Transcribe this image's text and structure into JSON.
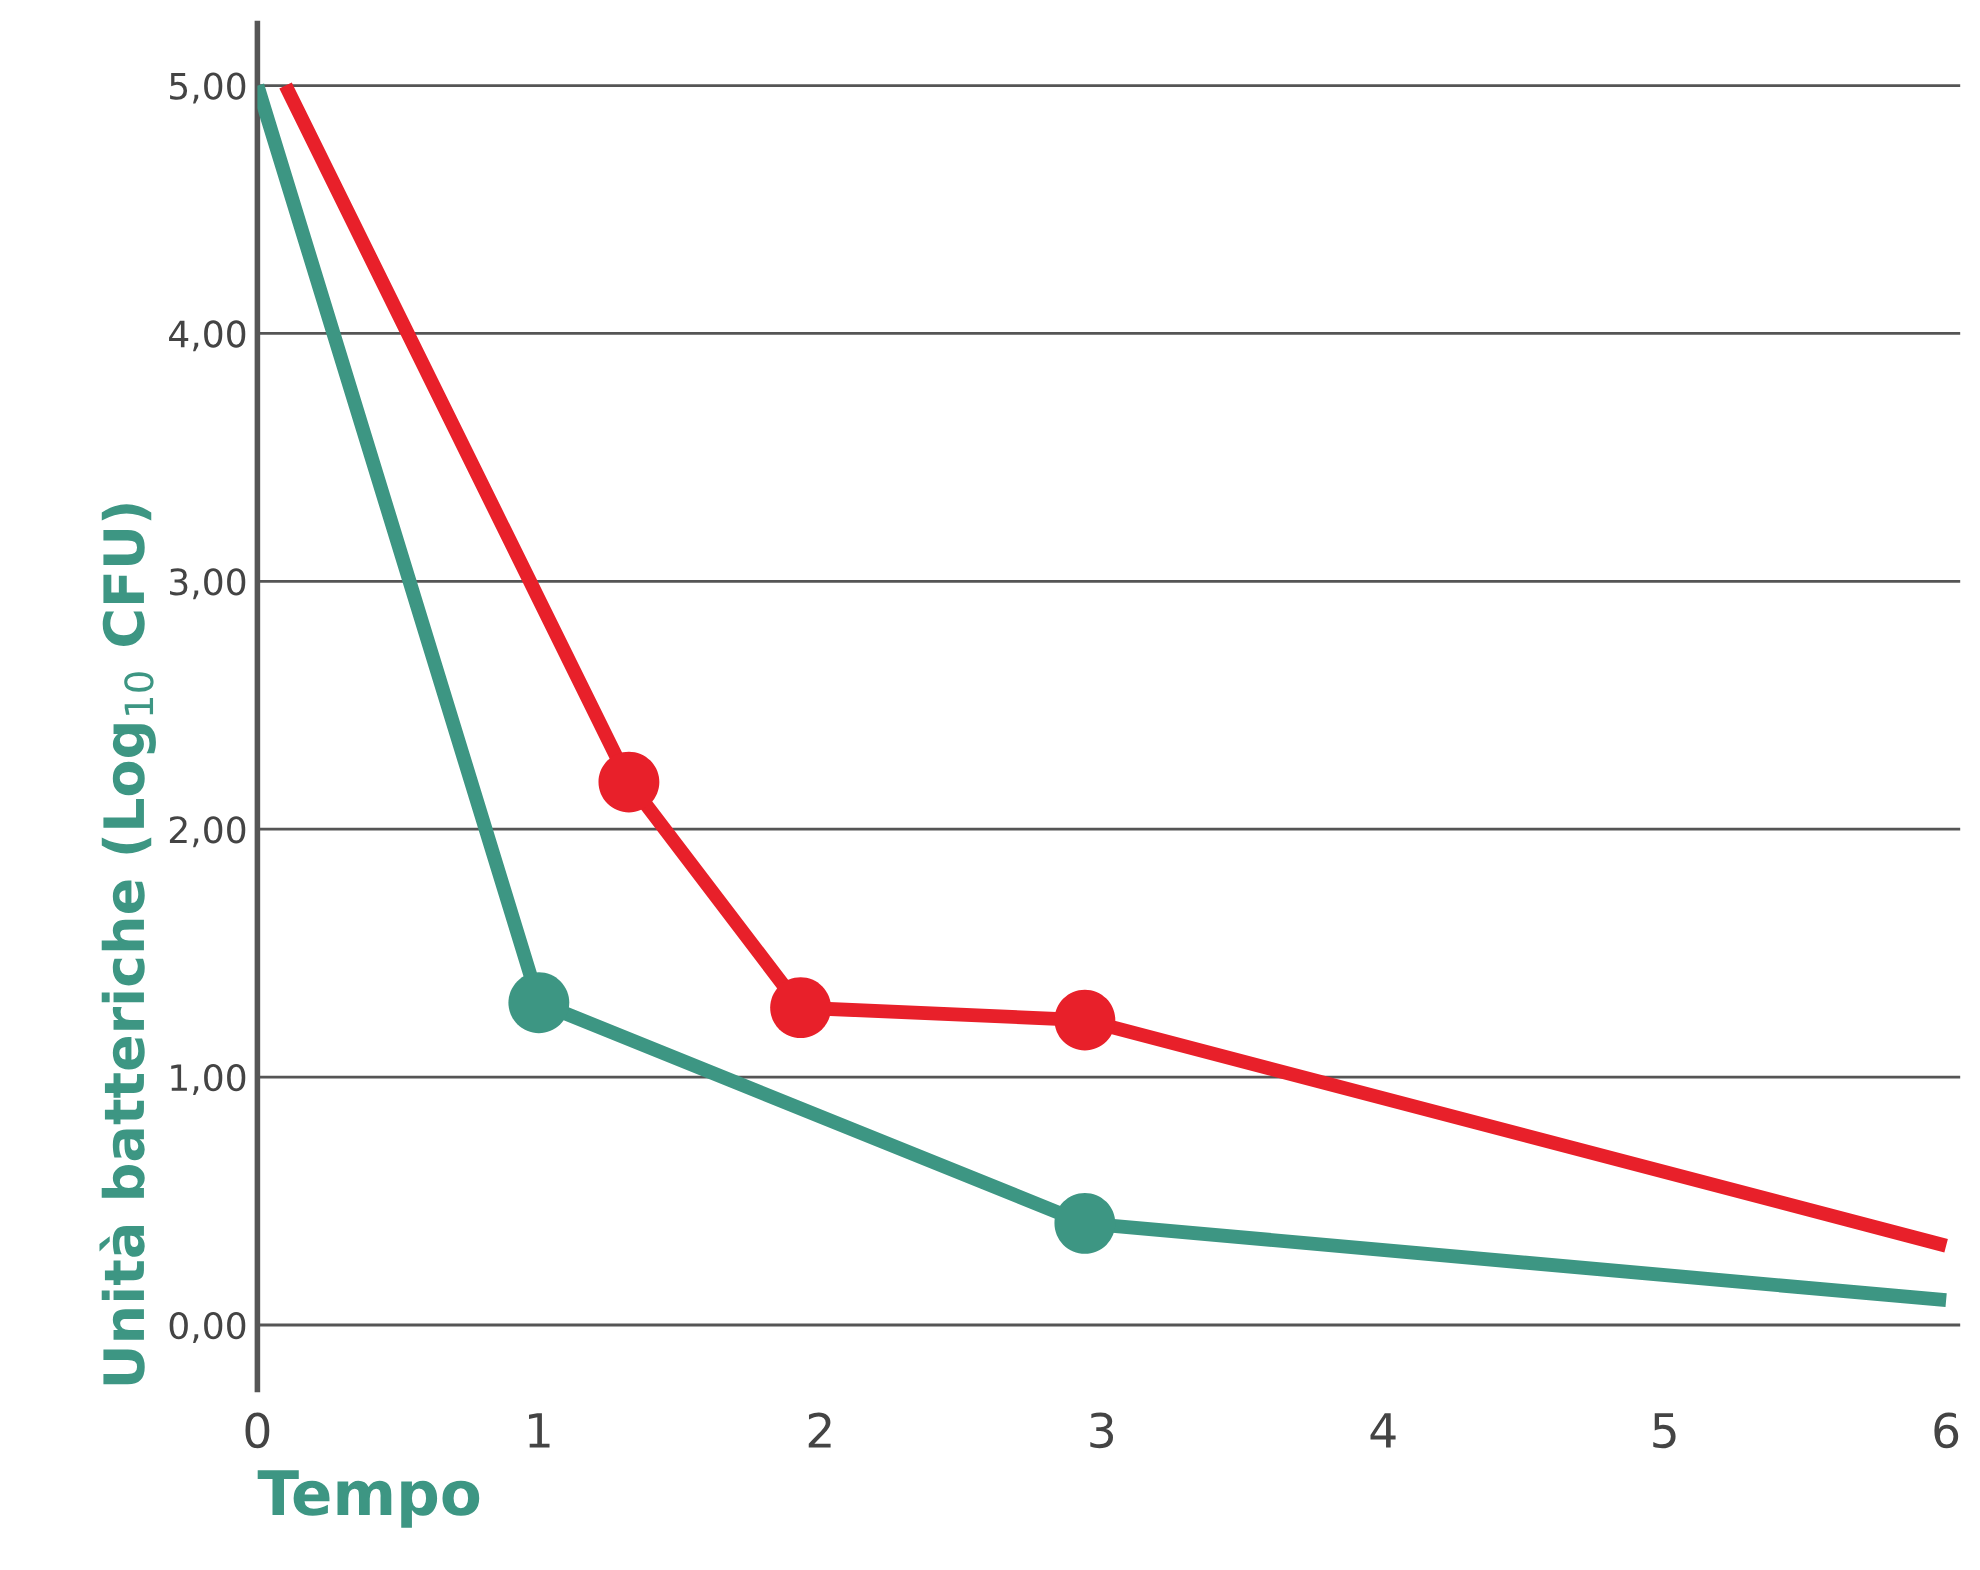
{
  "chart_data": {
    "type": "line",
    "xlabel": "Tempo",
    "ylabel": "Unità batteriche (Log$_{10}$ CFU)",
    "xlim": [
      0,
      6.05
    ],
    "xticks": [
      0,
      1,
      2,
      3,
      4,
      5,
      6
    ],
    "ylim": [
      -0.26,
      5.25
    ],
    "yticks": [
      {
        "value": 0,
        "label": "0,00"
      },
      {
        "value": 1,
        "label": "1,00"
      },
      {
        "value": 2,
        "label": "2,00"
      },
      {
        "value": 3,
        "label": "3,00"
      },
      {
        "value": 4,
        "label": "4,00"
      },
      {
        "value": 5,
        "label": "5,00"
      }
    ],
    "grid": "y",
    "legend": false,
    "marker": "none",
    "line_style": "solid",
    "series": [
      {
        "color": "#3d9683",
        "x": [
          0,
          1,
          2.94,
          6
        ],
        "values": [
          5,
          1.3,
          0.41,
          0.1
        ]
      },
      {
        "color": "#e8202a",
        "x": [
          0.1,
          1.32,
          1.93,
          2.94,
          6
        ],
        "values": [
          5,
          2.19,
          1.28,
          1.23,
          0.32
        ]
      },
      {
        "type": "scatter",
        "color": "#3d9683",
        "marker": "circle",
        "x": [
          1,
          2.94
        ],
        "values": [
          1.3,
          0.41
        ]
      },
      {
        "type": "scatter",
        "color": "#e8202a",
        "marker": "circle",
        "x": [
          1.32,
          1.93,
          2.94
        ],
        "values": [
          2.19,
          1.28,
          1.23
        ]
      }
    ]
  }
}
